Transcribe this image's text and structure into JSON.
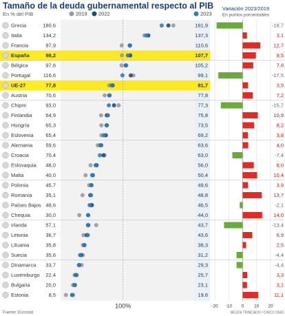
{
  "chart_data": [
    {
      "type": "dot",
      "title": "Tamaño de la deuda gubernamental respecto al PIB",
      "subtitle": "En % del PIB",
      "source": "Fuente: Eurostat",
      "credit": "BELÉN TRINCADO / CINCO DÍAS",
      "categories": [
        "Grecia",
        "Italia",
        "Francia",
        "España",
        "Bélgica",
        "Portugal",
        "UE-27",
        "Austria",
        "Chipre",
        "Finlandia",
        "Hungría",
        "Eslovenia",
        "Alemania",
        "Croacia",
        "Eslovaquia",
        "Malta",
        "Polonia",
        "Rumanía",
        "Países Bajos",
        "Chequia",
        "Irlanda",
        "Letonia",
        "Lituania",
        "Suecia",
        "Dinamarca",
        "Luxemburgo",
        "Bulgaria",
        "Estonia"
      ],
      "highlight": [
        "España",
        "UE-27"
      ],
      "series": [
        {
          "name": "2019",
          "color": "#9a9a9a",
          "values": [
            180.6,
            134.2,
            97.9,
            98.2,
            97.6,
            116.6,
            77.8,
            70.6,
            93.0,
            64.9,
            65.3,
            65.4,
            59.6,
            70.4,
            48.0,
            40.0,
            45.7,
            35.1,
            48.6,
            30.0,
            57.1,
            36.7,
            35.8,
            35.6,
            33.7,
            22.4,
            20.0,
            8.5
          ],
          "value_labels": [
            "180,6",
            "134,2",
            "97,9",
            "98,2",
            "97,6",
            "116,6",
            "77,8",
            "70,6",
            "93,0",
            "64,9",
            "65,3",
            "65,4",
            "59,6",
            "70,4",
            "48,0",
            "40,0",
            "45,7",
            "35,1",
            "48,6",
            "30,0",
            "57,1",
            "36,7",
            "35,8",
            "35,6",
            "33,7",
            "22,4",
            "20,0",
            "8,5"
          ]
        },
        {
          "name": "2022",
          "color": "#1d4a85",
          "values": [
            172.7,
            140.5,
            111.2,
            111.6,
            104.3,
            112.4,
            83.4,
            78.4,
            85.6,
            74.0,
            74.1,
            72.5,
            65.0,
            68.8,
            57.7,
            51.6,
            49.2,
            47.5,
            50.1,
            44.2,
            44.4,
            41.8,
            38.1,
            32.9,
            29.8,
            24.7,
            22.6,
            18.5
          ]
        },
        {
          "name": "2023",
          "color": "#2b7cc4",
          "values": [
            161.9,
            137.3,
            110.6,
            107.7,
            105.2,
            99.1,
            81.7,
            77.8,
            77.3,
            75.8,
            73.5,
            69.2,
            63.6,
            63.0,
            56.0,
            50.4,
            49.6,
            48.8,
            46.5,
            44.0,
            43.7,
            43.6,
            38.3,
            31.2,
            29.3,
            25.7,
            23.1,
            19.6
          ],
          "value_labels": [
            "161,9",
            "137,3",
            "110,6",
            "107,7",
            "105,2",
            "99,1",
            "81,7",
            "77,8",
            "77,3",
            "75,8",
            "73,5",
            "69,2",
            "63,6",
            "63,0",
            "56,0",
            "50,4",
            "49,6",
            "48,8",
            "46,5",
            "44,0",
            "43,7",
            "43,6",
            "38,3",
            "31,2",
            "29,3",
            "25,7",
            "23,1",
            "19,6"
          ]
        }
      ],
      "xlim": [
        0,
        215
      ],
      "xticks": [
        {
          "value": 100,
          "label": "100%"
        }
      ]
    },
    {
      "type": "hbar",
      "title": "Variación 2023/2019",
      "subtitle": "En puntos porcentuales",
      "values": [
        -18.7,
        3.1,
        12.7,
        9.5,
        7.6,
        -17.5,
        3.9,
        7.2,
        -15.7,
        10.9,
        8.2,
        3.8,
        4.0,
        -7.4,
        8.0,
        10.4,
        3.9,
        13.7,
        -2.1,
        14.0,
        -13.4,
        6.9,
        2.5,
        -4.4,
        -4.4,
        3.3,
        3.1,
        11.1
      ],
      "value_labels": [
        "-18,7",
        "3,1",
        "12,7",
        "9,5",
        "7,6",
        "-17,5",
        "3,9",
        "7,2",
        "-15,7",
        "10,9",
        "8,2",
        "3,8",
        "4,0",
        "-7,4",
        "8,0",
        "10,4",
        "3,9",
        "13,7",
        "-2,1",
        "14,0",
        "-13,4",
        "6,9",
        "2,5",
        "-4,4",
        "-4,4",
        "3,3",
        "3,1",
        "11,1"
      ],
      "positive_color": "#de2d26",
      "negative_color": "#6aaa3a",
      "xlim": [
        -22,
        22
      ],
      "xticks": [
        -20,
        -10,
        0,
        10,
        20
      ]
    }
  ]
}
